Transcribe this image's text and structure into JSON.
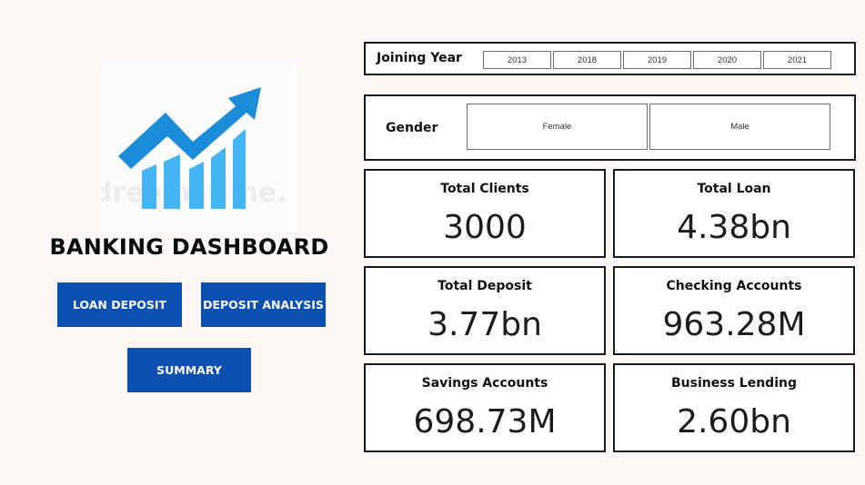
{
  "dashboard_title": "BANKING DASHBOARD",
  "logo": {
    "icon": "rising-trend-chart-icon",
    "watermark": "dreamstime.",
    "colors": {
      "arrow": "#1a8cd8",
      "bars": "#45b4f2"
    }
  },
  "nav": {
    "loan_deposit": "LOAN DEPOSIT",
    "deposit_analysis": "DEPOSIT ANALYSIS",
    "summary": "SUMMARY",
    "button_color": "#0b4fb3"
  },
  "joining_year": {
    "label": "Joining Year",
    "options": [
      "2013",
      "2018",
      "2019",
      "2020",
      "2021"
    ]
  },
  "gender": {
    "label": "Gender",
    "options": [
      "Female",
      "Male"
    ]
  },
  "kpis": [
    {
      "label": "Total Clients",
      "value": "3000"
    },
    {
      "label": "Total Loan",
      "value": "4.38bn"
    },
    {
      "label": "Total Deposit",
      "value": "3.77bn"
    },
    {
      "label": "Checking Accounts",
      "value": "963.28M"
    },
    {
      "label": "Savings Accounts",
      "value": "698.73M"
    },
    {
      "label": "Business Lending",
      "value": "2.60bn"
    }
  ]
}
